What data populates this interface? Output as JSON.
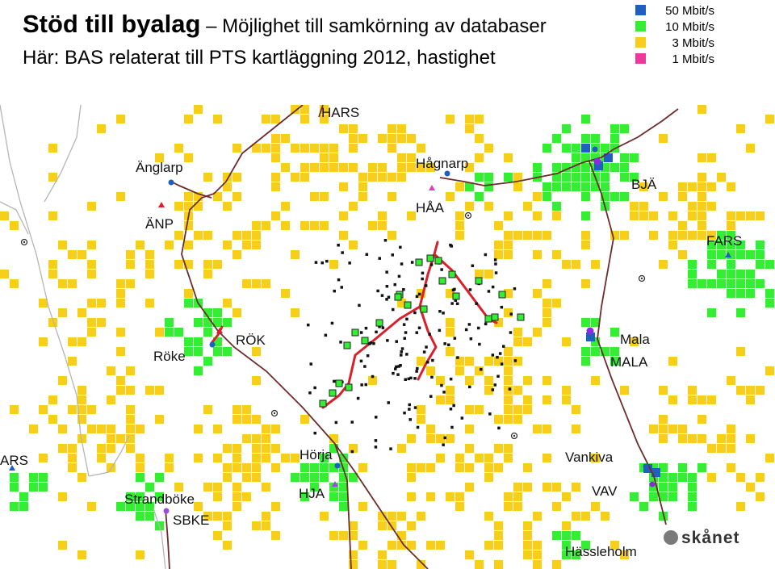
{
  "title": {
    "bold": "Stöd till byalag",
    "dash": " – ",
    "rest": "Möjlighet till samkörning av databaser"
  },
  "subtitle": "Här: BAS relaterat till PTS kartläggning 2012, hastighet",
  "legend": [
    {
      "label": "50 Mbit/s",
      "color": "#1f5fc0"
    },
    {
      "label": "10 Mbit/s",
      "color": "#33ee33"
    },
    {
      "label": "3 Mbit/s",
      "color": "#f7cf1a"
    },
    {
      "label": "1 Mbit/s",
      "color": "#f0379a"
    }
  ],
  "places": [
    {
      "id": "hars",
      "label": "HARS"
    },
    {
      "id": "anglarp",
      "label": "Änglarp"
    },
    {
      "id": "anp",
      "label": "ÄNP"
    },
    {
      "id": "hagnarp",
      "label": "Hågnarp"
    },
    {
      "id": "haa",
      "label": "HÅA"
    },
    {
      "id": "bja",
      "label": "BJÄ"
    },
    {
      "id": "fars",
      "label": "FARS"
    },
    {
      "id": "rok",
      "label": "RÖK"
    },
    {
      "id": "roke",
      "label": "Röke"
    },
    {
      "id": "mala",
      "label": "Mala"
    },
    {
      "id": "mala2",
      "label": "MALA"
    },
    {
      "id": "ars",
      "label": "ARS"
    },
    {
      "id": "horja",
      "label": "Hörja"
    },
    {
      "id": "hja",
      "label": "HJA"
    },
    {
      "id": "vankiva",
      "label": "Vankiva"
    },
    {
      "id": "vav",
      "label": "VAV"
    },
    {
      "id": "strandboke",
      "label": "Strandböke"
    },
    {
      "id": "sbke",
      "label": "SBKE"
    },
    {
      "id": "hassleholm",
      "label": "Hässleholm"
    }
  ],
  "brand": "skånet"
}
